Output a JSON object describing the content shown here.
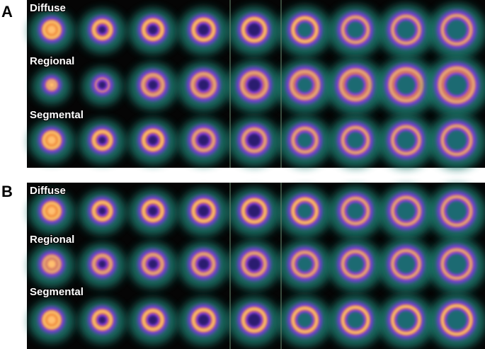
{
  "panels": [
    {
      "label": "A",
      "rows": [
        "Diffuse",
        "Regional",
        "Segmental"
      ]
    },
    {
      "label": "B",
      "rows": [
        "Diffuse",
        "Regional",
        "Segmental"
      ]
    }
  ]
}
